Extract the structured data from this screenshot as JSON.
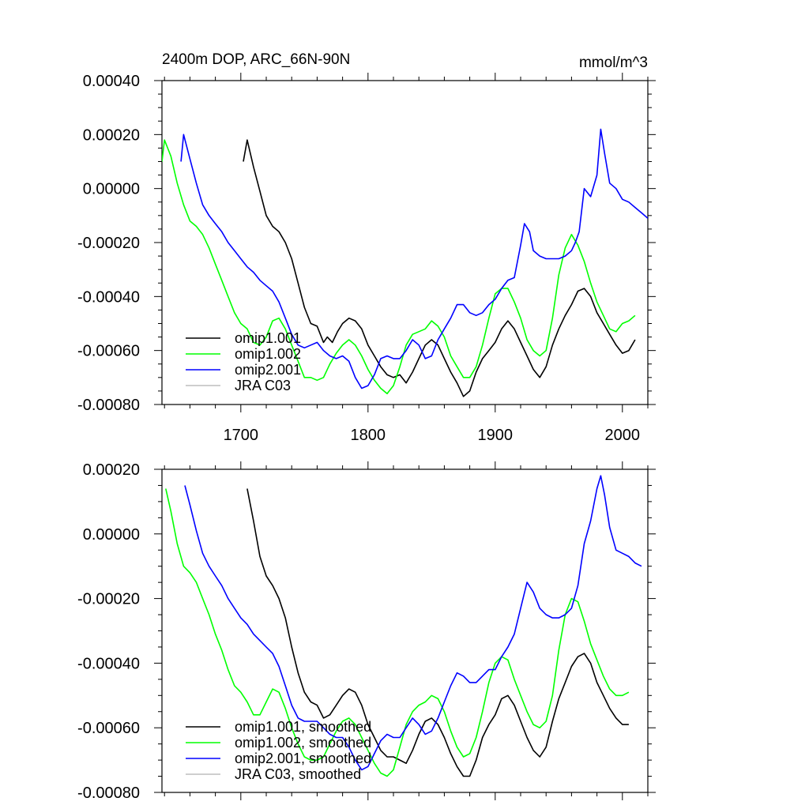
{
  "chart_data": [
    {
      "type": "line",
      "title_left": "2400m DOP, ARC_66N-90N",
      "title_right": "mmol/m^3",
      "xlim": [
        1638,
        2020
      ],
      "ylim": [
        -0.0008,
        0.0004
      ],
      "xticks": [
        1700,
        1800,
        1900,
        2000
      ],
      "xtick_labels": [
        "1700",
        "1800",
        "1900",
        "2000"
      ],
      "yticks": [
        0.0004,
        0.0002,
        0.0,
        -0.0002,
        -0.0004,
        -0.0006,
        -0.0008
      ],
      "ytick_labels": [
        "0.00040",
        "0.00020",
        "0.00000",
        "-0.00020",
        "-0.00040",
        "-0.00060",
        "-0.00080"
      ],
      "series": [
        {
          "name": "omip1.001",
          "color": "#000000",
          "x": [
            1702,
            1705,
            1710,
            1715,
            1720,
            1725,
            1730,
            1735,
            1740,
            1745,
            1750,
            1755,
            1760,
            1765,
            1768,
            1772,
            1776,
            1780,
            1785,
            1790,
            1795,
            1800,
            1805,
            1810,
            1815,
            1820,
            1825,
            1830,
            1835,
            1840,
            1845,
            1850,
            1855,
            1860,
            1865,
            1870,
            1875,
            1880,
            1885,
            1890,
            1895,
            1900,
            1905,
            1910,
            1915,
            1920,
            1925,
            1930,
            1935,
            1940,
            1945,
            1950,
            1955,
            1960,
            1965,
            1970,
            1975,
            1980,
            1985,
            1990,
            1995,
            2000,
            2005,
            2010
          ],
          "y": [
            0.0001,
            0.00018,
            8e-05,
            -1e-05,
            -0.0001,
            -0.00014,
            -0.00016,
            -0.0002,
            -0.00026,
            -0.00035,
            -0.00044,
            -0.0005,
            -0.00051,
            -0.00057,
            -0.00055,
            -0.00057,
            -0.00053,
            -0.0005,
            -0.00048,
            -0.00049,
            -0.00052,
            -0.00058,
            -0.00062,
            -0.00066,
            -0.00069,
            -0.0007,
            -0.00069,
            -0.00072,
            -0.00068,
            -0.00063,
            -0.00058,
            -0.00056,
            -0.00058,
            -0.00063,
            -0.00068,
            -0.00072,
            -0.00077,
            -0.00075,
            -0.00068,
            -0.00063,
            -0.0006,
            -0.00057,
            -0.00052,
            -0.00049,
            -0.00052,
            -0.00057,
            -0.00062,
            -0.00067,
            -0.0007,
            -0.00066,
            -0.00058,
            -0.00052,
            -0.00047,
            -0.00043,
            -0.00038,
            -0.00037,
            -0.0004,
            -0.00046,
            -0.0005,
            -0.00054,
            -0.00058,
            -0.00061,
            -0.0006,
            -0.00056
          ]
        },
        {
          "name": "omip1.002",
          "color": "#00ff00",
          "x": [
            1638,
            1640,
            1645,
            1650,
            1655,
            1660,
            1665,
            1670,
            1675,
            1680,
            1685,
            1690,
            1695,
            1700,
            1705,
            1710,
            1715,
            1720,
            1725,
            1730,
            1735,
            1740,
            1745,
            1750,
            1755,
            1760,
            1765,
            1770,
            1775,
            1780,
            1785,
            1790,
            1795,
            1800,
            1805,
            1810,
            1815,
            1820,
            1825,
            1830,
            1835,
            1840,
            1845,
            1850,
            1855,
            1860,
            1865,
            1870,
            1875,
            1880,
            1885,
            1890,
            1895,
            1900,
            1905,
            1910,
            1915,
            1920,
            1925,
            1930,
            1935,
            1940,
            1945,
            1950,
            1955,
            1960,
            1965,
            1970,
            1975,
            1980,
            1985,
            1990,
            1995,
            2000,
            2005,
            2010
          ],
          "y": [
            0.0001,
            0.00018,
            0.00012,
            2e-05,
            -6e-05,
            -0.00012,
            -0.00014,
            -0.00017,
            -0.00022,
            -0.00028,
            -0.00034,
            -0.0004,
            -0.00046,
            -0.0005,
            -0.00052,
            -0.00057,
            -0.00058,
            -0.00055,
            -0.00049,
            -0.00048,
            -0.00052,
            -0.00058,
            -0.00064,
            -0.0007,
            -0.0007,
            -0.00071,
            -0.0007,
            -0.00065,
            -0.00061,
            -0.00058,
            -0.00056,
            -0.00058,
            -0.00062,
            -0.00067,
            -0.00071,
            -0.00074,
            -0.00076,
            -0.00073,
            -0.00066,
            -0.00058,
            -0.00054,
            -0.00053,
            -0.00052,
            -0.00049,
            -0.00051,
            -0.00055,
            -0.00062,
            -0.00066,
            -0.0007,
            -0.0007,
            -0.00066,
            -0.00058,
            -0.00048,
            -0.00039,
            -0.00037,
            -0.00037,
            -0.00042,
            -0.00048,
            -0.00056,
            -0.0006,
            -0.00062,
            -0.0006,
            -0.00048,
            -0.00032,
            -0.00022,
            -0.00017,
            -0.00021,
            -0.00027,
            -0.00035,
            -0.00042,
            -0.00047,
            -0.00052,
            -0.00053,
            -0.0005,
            -0.00049,
            -0.00047
          ]
        },
        {
          "name": "omip2.001",
          "color": "#0000ff",
          "x": [
            1653,
            1655,
            1660,
            1665,
            1670,
            1675,
            1680,
            1685,
            1690,
            1695,
            1700,
            1705,
            1710,
            1715,
            1720,
            1725,
            1730,
            1735,
            1740,
            1745,
            1750,
            1755,
            1760,
            1765,
            1770,
            1775,
            1780,
            1785,
            1790,
            1795,
            1800,
            1805,
            1810,
            1815,
            1820,
            1825,
            1830,
            1835,
            1840,
            1845,
            1850,
            1855,
            1860,
            1865,
            1870,
            1875,
            1880,
            1885,
            1890,
            1895,
            1900,
            1905,
            1910,
            1915,
            1920,
            1923,
            1927,
            1930,
            1935,
            1940,
            1945,
            1950,
            1955,
            1960,
            1963,
            1966,
            1968,
            1970,
            1975,
            1980,
            1983,
            1986,
            1990,
            1995,
            2000,
            2005,
            2010,
            2015,
            2020
          ],
          "y": [
            0.0001,
            0.0002,
            0.00011,
            2e-05,
            -6e-05,
            -0.0001,
            -0.00013,
            -0.00016,
            -0.0002,
            -0.00023,
            -0.00026,
            -0.00029,
            -0.00031,
            -0.00034,
            -0.00036,
            -0.00038,
            -0.00042,
            -0.00048,
            -0.00054,
            -0.00058,
            -0.00059,
            -0.00058,
            -0.00057,
            -0.0006,
            -0.00062,
            -0.00063,
            -0.00062,
            -0.00064,
            -0.0007,
            -0.00074,
            -0.00073,
            -0.00069,
            -0.00063,
            -0.00062,
            -0.00063,
            -0.00063,
            -0.0006,
            -0.00056,
            -0.00058,
            -0.00063,
            -0.00062,
            -0.00056,
            -0.00052,
            -0.00048,
            -0.00043,
            -0.00043,
            -0.00046,
            -0.00047,
            -0.00046,
            -0.00043,
            -0.00041,
            -0.00037,
            -0.00034,
            -0.00033,
            -0.00021,
            -0.00013,
            -0.00016,
            -0.00023,
            -0.00025,
            -0.00026,
            -0.00026,
            -0.00026,
            -0.00025,
            -0.00023,
            -0.0002,
            -0.00016,
            -8e-05,
            0.0,
            -3e-05,
            5e-05,
            0.00022,
            0.00013,
            2e-05,
            -0.0,
            -4e-05,
            -5e-05,
            -7e-05,
            -9e-05,
            -0.00011
          ]
        },
        {
          "name": "JRA C03",
          "color": "#bdbdbd",
          "x": [],
          "y": []
        }
      ],
      "legend": [
        "omip1.001",
        "omip1.002",
        "omip2.001",
        "JRA C03"
      ]
    },
    {
      "type": "line",
      "xlim": [
        1638,
        2020
      ],
      "ylim": [
        -0.0008,
        0.0002
      ],
      "xticks": [
        1700,
        1800,
        1900,
        2000
      ],
      "yticks": [
        0.0002,
        0.0,
        -0.0002,
        -0.0004,
        -0.0006,
        -0.0008
      ],
      "ytick_labels": [
        "0.00020",
        "0.00000",
        "-0.00020",
        "-0.00040",
        "-0.00060",
        "-0.00080"
      ],
      "series": [
        {
          "name": "omip1.001, smoothed",
          "color": "#000000",
          "x": [
            1705,
            1710,
            1715,
            1720,
            1725,
            1730,
            1735,
            1740,
            1745,
            1750,
            1755,
            1760,
            1765,
            1770,
            1775,
            1780,
            1785,
            1790,
            1795,
            1800,
            1805,
            1810,
            1815,
            1820,
            1825,
            1830,
            1835,
            1840,
            1845,
            1850,
            1855,
            1860,
            1865,
            1870,
            1875,
            1880,
            1885,
            1890,
            1895,
            1900,
            1905,
            1910,
            1915,
            1920,
            1925,
            1930,
            1935,
            1940,
            1945,
            1950,
            1955,
            1960,
            1965,
            1970,
            1975,
            1980,
            1985,
            1990,
            1995,
            2000,
            2005
          ],
          "y": [
            0.00014,
            4e-05,
            -7e-05,
            -0.00013,
            -0.00016,
            -0.0002,
            -0.00026,
            -0.00035,
            -0.00043,
            -0.00049,
            -0.00052,
            -0.00053,
            -0.00057,
            -0.00056,
            -0.00053,
            -0.0005,
            -0.00048,
            -0.00049,
            -0.00053,
            -0.00059,
            -0.00063,
            -0.00067,
            -0.00069,
            -0.00069,
            -0.0007,
            -0.00071,
            -0.00067,
            -0.00062,
            -0.00058,
            -0.00057,
            -0.00059,
            -0.00063,
            -0.00068,
            -0.00072,
            -0.00075,
            -0.00075,
            -0.0007,
            -0.00063,
            -0.00059,
            -0.00056,
            -0.00051,
            -0.0005,
            -0.00053,
            -0.00058,
            -0.00063,
            -0.00067,
            -0.00069,
            -0.00066,
            -0.00058,
            -0.00051,
            -0.00046,
            -0.00041,
            -0.00038,
            -0.00037,
            -0.0004,
            -0.00046,
            -0.0005,
            -0.00054,
            -0.00057,
            -0.00059,
            -0.00059
          ]
        },
        {
          "name": "omip1.002, smoothed",
          "color": "#00ff00",
          "x": [
            1641,
            1645,
            1650,
            1655,
            1660,
            1665,
            1670,
            1675,
            1680,
            1685,
            1690,
            1695,
            1700,
            1705,
            1710,
            1715,
            1720,
            1725,
            1730,
            1735,
            1740,
            1745,
            1750,
            1755,
            1760,
            1765,
            1770,
            1775,
            1780,
            1785,
            1790,
            1795,
            1800,
            1805,
            1810,
            1815,
            1820,
            1825,
            1830,
            1835,
            1840,
            1845,
            1850,
            1855,
            1860,
            1865,
            1870,
            1875,
            1880,
            1885,
            1890,
            1895,
            1900,
            1905,
            1910,
            1915,
            1920,
            1925,
            1930,
            1935,
            1940,
            1945,
            1950,
            1955,
            1960,
            1965,
            1970,
            1975,
            1980,
            1985,
            1990,
            1995,
            2000,
            2005
          ],
          "y": [
            0.00014,
            7e-05,
            -3e-05,
            -0.0001,
            -0.00012,
            -0.00015,
            -0.0002,
            -0.00025,
            -0.00031,
            -0.00036,
            -0.00042,
            -0.00047,
            -0.00049,
            -0.00052,
            -0.00056,
            -0.00056,
            -0.00052,
            -0.00048,
            -0.00049,
            -0.00054,
            -0.0006,
            -0.00065,
            -0.00069,
            -0.0007,
            -0.0007,
            -0.00069,
            -0.00065,
            -0.00061,
            -0.00058,
            -0.00057,
            -0.00059,
            -0.00063,
            -0.00067,
            -0.00071,
            -0.00074,
            -0.00075,
            -0.00073,
            -0.00066,
            -0.00059,
            -0.00055,
            -0.00053,
            -0.00052,
            -0.0005,
            -0.00051,
            -0.00055,
            -0.00061,
            -0.00066,
            -0.00069,
            -0.00068,
            -0.00063,
            -0.00055,
            -0.00046,
            -0.0004,
            -0.00038,
            -0.00039,
            -0.00045,
            -0.0005,
            -0.00055,
            -0.00059,
            -0.0006,
            -0.00058,
            -0.0005,
            -0.00036,
            -0.00025,
            -0.0002,
            -0.00021,
            -0.00027,
            -0.00034,
            -0.00039,
            -0.00044,
            -0.00048,
            -0.0005,
            -0.0005,
            -0.00049
          ]
        },
        {
          "name": "omip2.001, smoothed",
          "color": "#0000ff",
          "x": [
            1656,
            1660,
            1665,
            1670,
            1675,
            1680,
            1685,
            1690,
            1695,
            1700,
            1705,
            1710,
            1715,
            1720,
            1725,
            1730,
            1735,
            1740,
            1745,
            1750,
            1755,
            1760,
            1765,
            1770,
            1775,
            1780,
            1785,
            1790,
            1795,
            1800,
            1805,
            1810,
            1815,
            1820,
            1825,
            1830,
            1835,
            1840,
            1845,
            1850,
            1855,
            1860,
            1865,
            1870,
            1875,
            1880,
            1885,
            1890,
            1895,
            1900,
            1905,
            1910,
            1915,
            1920,
            1925,
            1930,
            1935,
            1940,
            1945,
            1950,
            1955,
            1960,
            1965,
            1970,
            1975,
            1980,
            1983,
            1986,
            1990,
            1995,
            2000,
            2005,
            2010,
            2015
          ],
          "y": [
            0.00015,
            9e-05,
            1e-05,
            -6e-05,
            -0.0001,
            -0.00013,
            -0.00016,
            -0.0002,
            -0.00023,
            -0.00026,
            -0.00028,
            -0.00031,
            -0.00033,
            -0.00035,
            -0.00037,
            -0.00041,
            -0.00047,
            -0.00053,
            -0.00057,
            -0.00058,
            -0.00058,
            -0.00058,
            -0.0006,
            -0.00062,
            -0.00063,
            -0.00063,
            -0.00066,
            -0.0007,
            -0.00073,
            -0.00072,
            -0.00068,
            -0.00064,
            -0.00062,
            -0.00063,
            -0.00063,
            -0.0006,
            -0.00057,
            -0.00059,
            -0.00062,
            -0.00061,
            -0.00057,
            -0.00052,
            -0.00047,
            -0.00043,
            -0.00044,
            -0.00046,
            -0.00046,
            -0.00044,
            -0.00042,
            -0.00042,
            -0.00038,
            -0.00035,
            -0.00031,
            -0.00023,
            -0.00015,
            -0.00018,
            -0.00023,
            -0.00025,
            -0.00026,
            -0.00026,
            -0.00025,
            -0.00023,
            -0.00016,
            -3e-05,
            4e-05,
            0.00014,
            0.00018,
            0.00012,
            2e-05,
            -5e-05,
            -6e-05,
            -7e-05,
            -9e-05,
            -0.0001
          ]
        },
        {
          "name": "JRA C03, smoothed",
          "color": "#bdbdbd",
          "x": [],
          "y": []
        }
      ],
      "legend": [
        "omip1.001, smoothed",
        "omip1.002, smoothed",
        "omip2.001, smoothed",
        "JRA C03, smoothed"
      ]
    }
  ]
}
